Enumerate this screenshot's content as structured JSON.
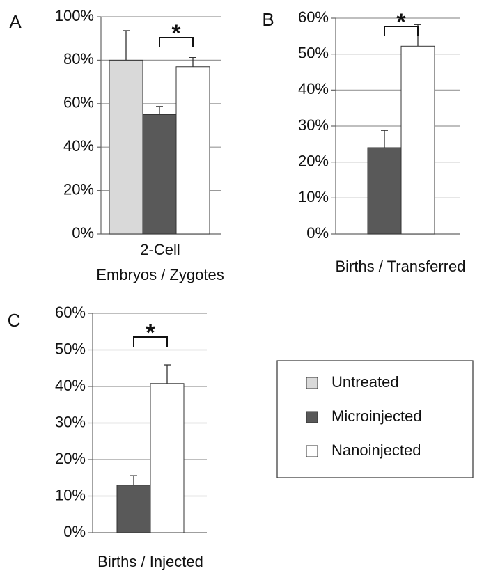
{
  "chart_data": [
    {
      "type": "bar",
      "panel": "A",
      "xlabel": [
        "2-Cell",
        "Embryos / Zygotes"
      ],
      "ylim": [
        0,
        100
      ],
      "yticks": [
        {
          "value": 0,
          "label": "0%"
        },
        {
          "value": 20,
          "label": "20%"
        },
        {
          "value": 40,
          "label": "40%"
        },
        {
          "value": 60,
          "label": "60%"
        },
        {
          "value": 80,
          "label": "80%"
        },
        {
          "value": 100,
          "label": "100%"
        }
      ],
      "grid": true,
      "series": [
        {
          "name": "Untreated",
          "color": "#d9d9d9",
          "values": [
            80
          ],
          "errors": [
            13.6
          ]
        },
        {
          "name": "Microinjected",
          "color": "#595959",
          "values": [
            55
          ],
          "errors": [
            3.7
          ]
        },
        {
          "name": "Nanoinjected",
          "color": "#ffffff",
          "values": [
            77
          ],
          "errors": [
            4.2
          ]
        }
      ],
      "annotations": [
        "*"
      ]
    },
    {
      "type": "bar",
      "panel": "B",
      "xlabel": [
        "Births / Transferred"
      ],
      "ylim": [
        0,
        60
      ],
      "yticks": [
        {
          "value": 0,
          "label": "0%"
        },
        {
          "value": 10,
          "label": "10%"
        },
        {
          "value": 20,
          "label": "20%"
        },
        {
          "value": 30,
          "label": "30%"
        },
        {
          "value": 40,
          "label": "40%"
        },
        {
          "value": 50,
          "label": "50%"
        },
        {
          "value": 60,
          "label": "60%"
        }
      ],
      "grid": true,
      "series": [
        {
          "color": "#595959",
          "values": [
            24
          ],
          "errors": [
            4.8
          ]
        },
        {
          "color": "#ffffff",
          "values": [
            52.2
          ],
          "errors": [
            6
          ]
        }
      ],
      "annotations": [
        "*"
      ]
    },
    {
      "type": "bar",
      "panel": "C",
      "xlabel": [
        "Births / Injected"
      ],
      "ylim": [
        0,
        60
      ],
      "yticks": [
        {
          "value": 0,
          "label": "0%"
        },
        {
          "value": 10,
          "label": "10%"
        },
        {
          "value": 20,
          "label": "20%"
        },
        {
          "value": 30,
          "label": "30%"
        },
        {
          "value": 40,
          "label": "40%"
        },
        {
          "value": 50,
          "label": "50%"
        },
        {
          "value": 60,
          "label": "60%"
        }
      ],
      "grid": true,
      "series": [
        {
          "color": "#595959",
          "values": [
            13
          ],
          "errors": [
            2.6
          ]
        },
        {
          "color": "#ffffff",
          "values": [
            40.8
          ],
          "errors": [
            5.1
          ]
        }
      ],
      "annotations": [
        "*"
      ]
    }
  ]
}
